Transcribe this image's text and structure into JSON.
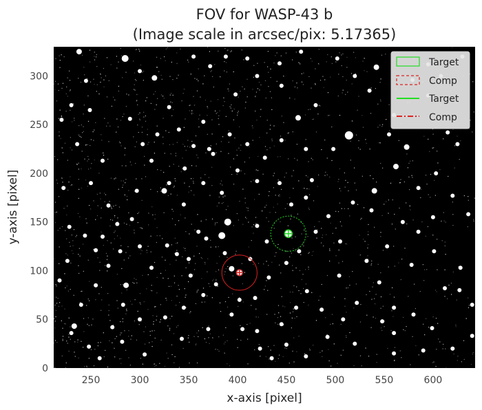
{
  "chart_data": {
    "type": "image",
    "title_line1": "FOV for WASP-43 b",
    "title_line2": "(Image scale in arcsec/pix: 5.17365)",
    "xlabel": "x-axis [pixel]",
    "ylabel": "y-axis [pixel]",
    "xlim": [
      212,
      643
    ],
    "ylim": [
      0,
      330
    ],
    "x_ticks": [
      250,
      300,
      350,
      400,
      450,
      500,
      550,
      600
    ],
    "y_ticks": [
      0,
      50,
      100,
      150,
      200,
      250,
      300
    ],
    "background_color": "#000000",
    "target": {
      "x": 452,
      "y": 138,
      "aperture_radius": 8,
      "annulus_radius": 18,
      "color": "#22dd22"
    },
    "comparison": {
      "x": 402,
      "y": 98,
      "aperture_radius": 6,
      "annulus_radius": 18,
      "color": "#dd2222"
    },
    "legend": {
      "location": "top-right",
      "entries": [
        {
          "label": "Target",
          "kind": "patch-solid",
          "color": "#22dd22"
        },
        {
          "label": "Comp",
          "kind": "patch-dashed",
          "color": "#dd2222"
        },
        {
          "label": "Target",
          "kind": "line-solid",
          "color": "#22dd22"
        },
        {
          "label": "Comp",
          "kind": "line-dashdot",
          "color": "#dd2222"
        }
      ]
    },
    "stars": [
      [
        233,
        43,
        4
      ],
      [
        277,
        148,
        3
      ],
      [
        315,
        298,
        4
      ],
      [
        292,
        153,
        3
      ],
      [
        255,
        121,
        3
      ],
      [
        283,
        65,
        3
      ],
      [
        248,
        22,
        3
      ],
      [
        326,
        52,
        3
      ],
      [
        325,
        182,
        4
      ],
      [
        371,
        225,
        3
      ],
      [
        328,
        126,
        3
      ],
      [
        368,
        133,
        3
      ],
      [
        390,
        150,
        5
      ],
      [
        420,
        146,
        3
      ],
      [
        430,
        130,
        3
      ],
      [
        462,
        257,
        4
      ],
      [
        476,
        193,
        3
      ],
      [
        493,
        156,
        3
      ],
      [
        514,
        239,
        6
      ],
      [
        537,
        162,
        3
      ],
      [
        540,
        182,
        4
      ],
      [
        562,
        207,
        4
      ],
      [
        573,
        227,
        4
      ],
      [
        585,
        140,
        3
      ],
      [
        601,
        120,
        3
      ],
      [
        612,
        82,
        3
      ],
      [
        628,
        103,
        3
      ],
      [
        636,
        158,
        3
      ],
      [
        627,
        80,
        3
      ],
      [
        640,
        65,
        3
      ],
      [
        599,
        41,
        3
      ],
      [
        560,
        36,
        3
      ],
      [
        520,
        25,
        3
      ],
      [
        486,
        60,
        3
      ],
      [
        460,
        62,
        3
      ],
      [
        445,
        45,
        3
      ],
      [
        423,
        20,
        3
      ],
      [
        402,
        70,
        3
      ],
      [
        378,
        86,
        3
      ],
      [
        352,
        95,
        3
      ],
      [
        338,
        117,
        3
      ],
      [
        312,
        103,
        3
      ],
      [
        286,
        85,
        4
      ],
      [
        268,
        105,
        3
      ],
      [
        244,
        136,
        3
      ],
      [
        226,
        110,
        3
      ],
      [
        230,
        270,
        3
      ],
      [
        245,
        295,
        3
      ],
      [
        262,
        213,
        3
      ],
      [
        290,
        256,
        3
      ],
      [
        303,
        230,
        3
      ],
      [
        330,
        268,
        3
      ],
      [
        346,
        205,
        3
      ],
      [
        365,
        253,
        3
      ],
      [
        398,
        281,
        3
      ],
      [
        420,
        300,
        3
      ],
      [
        445,
        290,
        3
      ],
      [
        480,
        270,
        3
      ],
      [
        498,
        225,
        3
      ],
      [
        542,
        309,
        4
      ],
      [
        560,
        260,
        3
      ],
      [
        579,
        296,
        3
      ],
      [
        595,
        312,
        3
      ],
      [
        615,
        242,
        3
      ],
      [
        625,
        230,
        3
      ],
      [
        230,
        36,
        3
      ],
      [
        259,
        10,
        3
      ],
      [
        282,
        27,
        3
      ],
      [
        305,
        14,
        3
      ],
      [
        343,
        30,
        3
      ],
      [
        370,
        40,
        3
      ],
      [
        394,
        55,
        3
      ],
      [
        420,
        38,
        3
      ],
      [
        471,
        79,
        3
      ],
      [
        504,
        95,
        3
      ],
      [
        532,
        110,
        3
      ],
      [
        553,
        125,
        3
      ],
      [
        569,
        150,
        3
      ],
      [
        585,
        185,
        3
      ],
      [
        603,
        200,
        3
      ],
      [
        620,
        177,
        3
      ],
      [
        600,
        155,
        3
      ],
      [
        578,
        106,
        3
      ],
      [
        545,
        88,
        3
      ],
      [
        522,
        67,
        3
      ],
      [
        508,
        50,
        3
      ],
      [
        492,
        32,
        3
      ],
      [
        470,
        12,
        3
      ],
      [
        432,
        93,
        3
      ],
      [
        413,
        112,
        3
      ],
      [
        387,
        118,
        3
      ],
      [
        360,
        140,
        3
      ],
      [
        345,
        168,
        3
      ],
      [
        330,
        190,
        3
      ],
      [
        312,
        213,
        3
      ],
      [
        297,
        182,
        3
      ],
      [
        268,
        167,
        3
      ],
      [
        250,
        190,
        3
      ],
      [
        236,
        230,
        3
      ],
      [
        220,
        255,
        3
      ],
      [
        222,
        185,
        3
      ],
      [
        249,
        265,
        3
      ],
      [
        238,
        325,
        4
      ],
      [
        285,
        318,
        5
      ],
      [
        300,
        305,
        3
      ],
      [
        355,
        320,
        3
      ],
      [
        372,
        310,
        3
      ],
      [
        388,
        320,
        3
      ],
      [
        410,
        318,
        3
      ],
      [
        443,
        313,
        3
      ],
      [
        465,
        325,
        3
      ],
      [
        502,
        318,
        3
      ],
      [
        520,
        300,
        3
      ],
      [
        535,
        285,
        3
      ],
      [
        555,
        240,
        3
      ],
      [
        595,
        280,
        3
      ],
      [
        608,
        300,
        3
      ],
      [
        630,
        320,
        3
      ],
      [
        418,
        72,
        3
      ],
      [
        394,
        102,
        4
      ],
      [
        384,
        136,
        5
      ],
      [
        450,
        108,
        3
      ],
      [
        463,
        120,
        3
      ],
      [
        480,
        140,
        3
      ],
      [
        505,
        130,
        3
      ],
      [
        518,
        170,
        3
      ],
      [
        470,
        225,
        3
      ],
      [
        445,
        234,
        3
      ],
      [
        428,
        216,
        3
      ],
      [
        410,
        230,
        3
      ],
      [
        392,
        240,
        3
      ],
      [
        375,
        220,
        3
      ],
      [
        355,
        228,
        3
      ],
      [
        340,
        245,
        3
      ],
      [
        318,
        240,
        3
      ],
      [
        455,
        168,
        3
      ],
      [
        470,
        175,
        3
      ],
      [
        443,
        190,
        3
      ],
      [
        420,
        192,
        3
      ],
      [
        400,
        203,
        3
      ],
      [
        384,
        180,
        3
      ],
      [
        365,
        190,
        3
      ],
      [
        350,
        112,
        3
      ],
      [
        300,
        125,
        3
      ],
      [
        280,
        120,
        3
      ],
      [
        262,
        135,
        3
      ],
      [
        255,
        85,
        3
      ],
      [
        240,
        65,
        3
      ],
      [
        228,
        145,
        3
      ],
      [
        218,
        90,
        3
      ],
      [
        272,
        42,
        3
      ],
      [
        300,
        50,
        3
      ],
      [
        345,
        62,
        3
      ],
      [
        365,
        75,
        3
      ],
      [
        405,
        40,
        3
      ],
      [
        435,
        10,
        3
      ],
      [
        450,
        24,
        3
      ],
      [
        560,
        15,
        3
      ],
      [
        590,
        18,
        3
      ],
      [
        620,
        20,
        3
      ],
      [
        640,
        33,
        3
      ],
      [
        580,
        55,
        3
      ],
      [
        560,
        62,
        3
      ],
      [
        548,
        48,
        3
      ]
    ]
  }
}
